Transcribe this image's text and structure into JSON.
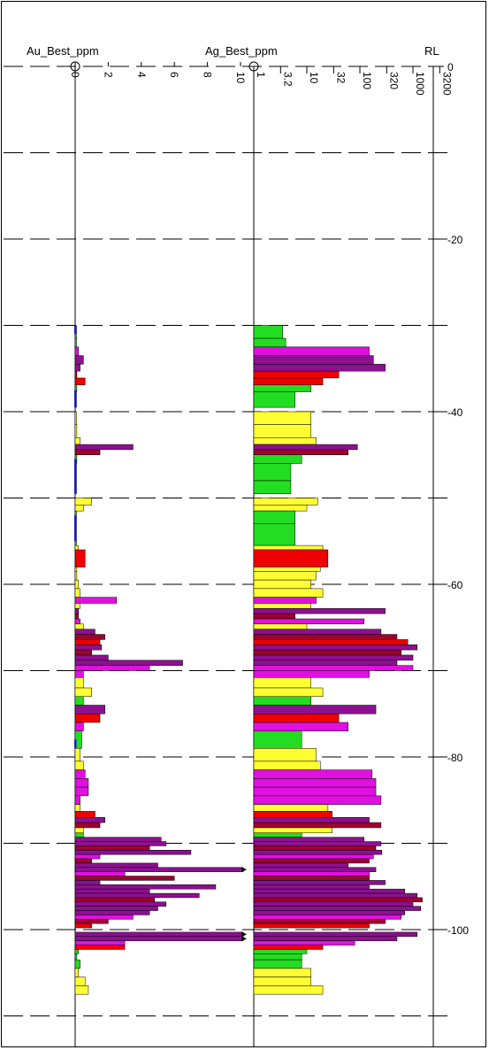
{
  "chart_data": {
    "type": "bar",
    "title": "",
    "depth_axis": {
      "label": "RL",
      "ticks": [
        0,
        -20,
        -40,
        -60,
        -80,
        -100
      ],
      "range": [
        0,
        -113
      ],
      "gridlines_every": 10
    },
    "panels": [
      {
        "name": "Au_Best_ppm",
        "scale": "linear",
        "xlim": [
          0,
          11
        ],
        "ticks": [
          "0",
          "2",
          "4",
          "6",
          "8",
          "10"
        ],
        "tick_values": [
          0,
          2,
          4,
          6,
          8,
          10
        ]
      },
      {
        "name": "Ag_Best_ppm",
        "scale": "log",
        "xlim": [
          1,
          5000
        ],
        "ticks": [
          "1",
          "3.2",
          "10",
          "32",
          "100",
          "320",
          "1000",
          "3200"
        ],
        "tick_values": [
          1,
          3.2,
          10,
          32,
          100,
          320,
          1000,
          3200
        ]
      }
    ],
    "colors": {
      "green": "#22dd22",
      "yellow": "#ffff33",
      "red": "#ee0000",
      "dark_red": "#a00030",
      "purple": "#8c1090",
      "magenta": "#e010e0",
      "blue": "#1a1acc"
    },
    "intervals": [
      {
        "from": -30,
        "to": -31.5,
        "au": 0.05,
        "ag": 3.5,
        "color": "green"
      },
      {
        "from": -31.5,
        "to": -32.5,
        "au": 0.08,
        "ag": 4,
        "color": "green"
      },
      {
        "from": -32.5,
        "to": -33.5,
        "au": 0.2,
        "ag": 150,
        "color": "magenta"
      },
      {
        "from": -33.5,
        "to": -34.5,
        "au": 0.5,
        "ag": 180,
        "color": "purple"
      },
      {
        "from": -34.5,
        "to": -35.3,
        "au": 0.3,
        "ag": 300,
        "color": "purple"
      },
      {
        "from": -35.3,
        "to": -36.1,
        "au": 0.1,
        "ag": 40,
        "color": "red"
      },
      {
        "from": -36.1,
        "to": -36.9,
        "au": 0.6,
        "ag": 20,
        "color": "red"
      },
      {
        "from": -36.9,
        "to": -37.7,
        "au": 0.1,
        "ag": 12,
        "color": "green"
      },
      {
        "from": -37.7,
        "to": -39.5,
        "au": 0.05,
        "ag": 6,
        "color": "green"
      },
      {
        "from": -40,
        "to": -41.5,
        "au": 0.05,
        "ag": 12,
        "color": "yellow"
      },
      {
        "from": -41.5,
        "to": -43,
        "au": 0.1,
        "ag": 12,
        "color": "yellow"
      },
      {
        "from": -43,
        "to": -43.8,
        "au": 0.3,
        "ag": 15,
        "color": "yellow"
      },
      {
        "from": -43.8,
        "to": -44.4,
        "au": 3.5,
        "ag": 90,
        "color": "purple"
      },
      {
        "from": -44.4,
        "to": -45,
        "au": 1.5,
        "ag": 60,
        "color": "dark_red"
      },
      {
        "from": -45,
        "to": -46,
        "au": 0.1,
        "ag": 8,
        "color": "green"
      },
      {
        "from": -46,
        "to": -48,
        "au": 0.05,
        "ag": 5,
        "color": "green"
      },
      {
        "from": -48,
        "to": -49.5,
        "au": 0.05,
        "ag": 5,
        "color": "green"
      },
      {
        "from": -50,
        "to": -50.8,
        "au": 1,
        "ag": 16,
        "color": "yellow"
      },
      {
        "from": -50.8,
        "to": -51.5,
        "au": 0.5,
        "ag": 10,
        "color": "yellow"
      },
      {
        "from": -51.5,
        "to": -53,
        "au": 0.05,
        "ag": 6,
        "color": "green"
      },
      {
        "from": -53,
        "to": -55.5,
        "au": 0.05,
        "ag": 6,
        "color": "green"
      },
      {
        "from": -55.5,
        "to": -56,
        "au": 0.2,
        "ag": 20,
        "color": "yellow"
      },
      {
        "from": -56,
        "to": -58,
        "au": 0.6,
        "ag": 25,
        "color": "red"
      },
      {
        "from": -58,
        "to": -58.5,
        "au": 0.1,
        "ag": 18,
        "color": "yellow"
      },
      {
        "from": -58.5,
        "to": -59.5,
        "au": 0.1,
        "ag": 15,
        "color": "yellow"
      },
      {
        "from": -59.5,
        "to": -60.5,
        "au": 0.2,
        "ag": 12,
        "color": "yellow"
      },
      {
        "from": -60.5,
        "to": -61.5,
        "au": 0.3,
        "ag": 20,
        "color": "yellow"
      },
      {
        "from": -61.5,
        "to": -62.2,
        "au": 2.5,
        "ag": 15,
        "color": "magenta"
      },
      {
        "from": -62.2,
        "to": -62.8,
        "au": 0.3,
        "ag": 12,
        "color": "yellow"
      },
      {
        "from": -62.8,
        "to": -63.4,
        "au": 0.2,
        "ag": 300,
        "color": "purple"
      },
      {
        "from": -63.4,
        "to": -64,
        "au": 0.2,
        "ag": 6,
        "color": "dark_red"
      },
      {
        "from": -64,
        "to": -64.6,
        "au": 0.3,
        "ag": 120,
        "color": "magenta"
      },
      {
        "from": -64.6,
        "to": -65.2,
        "au": 0.5,
        "ag": 10,
        "color": "yellow"
      },
      {
        "from": -65.2,
        "to": -65.8,
        "au": 1.2,
        "ag": 250,
        "color": "purple"
      },
      {
        "from": -65.8,
        "to": -66.4,
        "au": 1.8,
        "ag": 500,
        "color": "dark_red"
      },
      {
        "from": -66.4,
        "to": -67,
        "au": 1.5,
        "ag": 800,
        "color": "red"
      },
      {
        "from": -67,
        "to": -67.6,
        "au": 1.6,
        "ag": 1200,
        "color": "purple"
      },
      {
        "from": -67.6,
        "to": -68.2,
        "au": 1.0,
        "ag": 600,
        "color": "dark_red"
      },
      {
        "from": -68.2,
        "to": -68.8,
        "au": 2.0,
        "ag": 1000,
        "color": "purple"
      },
      {
        "from": -68.8,
        "to": -69.4,
        "au": 6.5,
        "ag": 500,
        "color": "purple"
      },
      {
        "from": -69.4,
        "to": -70,
        "au": 4.5,
        "ag": 1000,
        "color": "magenta"
      },
      {
        "from": -70,
        "to": -70.8,
        "au": 0.5,
        "ag": 150,
        "color": "magenta"
      },
      {
        "from": -70.8,
        "to": -72,
        "au": 0.5,
        "ag": 12,
        "color": "yellow"
      },
      {
        "from": -72,
        "to": -73,
        "au": 1.0,
        "ag": 20,
        "color": "yellow"
      },
      {
        "from": -73,
        "to": -74,
        "au": 0.5,
        "ag": 12,
        "color": "green"
      },
      {
        "from": -74,
        "to": -75,
        "au": 1.8,
        "ag": 200,
        "color": "purple"
      },
      {
        "from": -75,
        "to": -76,
        "au": 1.5,
        "ag": 40,
        "color": "red"
      },
      {
        "from": -76,
        "to": -77,
        "au": 0.5,
        "ag": 60,
        "color": "magenta"
      },
      {
        "from": -77,
        "to": -79,
        "au": 0.4,
        "ag": 8,
        "color": "green"
      },
      {
        "from": -79,
        "to": -80.5,
        "au": 0.3,
        "ag": 15,
        "color": "yellow"
      },
      {
        "from": -80.5,
        "to": -81.5,
        "au": 0.5,
        "ag": 18,
        "color": "yellow"
      },
      {
        "from": -81.5,
        "to": -82.5,
        "au": 0.6,
        "ag": 170,
        "color": "magenta"
      },
      {
        "from": -82.5,
        "to": -83.5,
        "au": 0.8,
        "ag": 200,
        "color": "magenta"
      },
      {
        "from": -83.5,
        "to": -84.5,
        "au": 0.8,
        "ag": 200,
        "color": "magenta"
      },
      {
        "from": -84.5,
        "to": -85.5,
        "au": 0.3,
        "ag": 250,
        "color": "magenta"
      },
      {
        "from": -85.5,
        "to": -86.3,
        "au": 0.3,
        "ag": 25,
        "color": "yellow"
      },
      {
        "from": -86.3,
        "to": -87,
        "au": 1.2,
        "ag": 30,
        "color": "red"
      },
      {
        "from": -87,
        "to": -87.6,
        "au": 1.8,
        "ag": 150,
        "color": "purple"
      },
      {
        "from": -87.6,
        "to": -88.2,
        "au": 1.5,
        "ag": 250,
        "color": "dark_red"
      },
      {
        "from": -88.2,
        "to": -88.8,
        "au": 0.5,
        "ag": 30,
        "color": "yellow"
      },
      {
        "from": -88.8,
        "to": -89.3,
        "au": 0.5,
        "ag": 8,
        "color": "green"
      },
      {
        "from": -89.3,
        "to": -89.8,
        "au": 5.2,
        "ag": 120,
        "color": "purple"
      },
      {
        "from": -89.8,
        "to": -90.3,
        "au": 5.5,
        "ag": 250,
        "color": "purple"
      },
      {
        "from": -90.3,
        "to": -90.8,
        "au": 4.5,
        "ag": 200,
        "color": "dark_red"
      },
      {
        "from": -90.8,
        "to": -91.3,
        "au": 7.0,
        "ag": 260,
        "color": "purple"
      },
      {
        "from": -91.3,
        "to": -91.8,
        "au": 1.5,
        "ag": 180,
        "color": "magenta"
      },
      {
        "from": -91.8,
        "to": -92.3,
        "au": 1.0,
        "ag": 150,
        "color": "dark_red"
      },
      {
        "from": -92.3,
        "to": -92.8,
        "au": 5.0,
        "ag": 60,
        "color": "purple"
      },
      {
        "from": -92.8,
        "to": -93.3,
        "au": 11.0,
        "ag": 200,
        "color": "purple"
      },
      {
        "from": -93.3,
        "to": -93.8,
        "au": 3.0,
        "ag": 150,
        "color": "magenta"
      },
      {
        "from": -93.8,
        "to": -94.3,
        "au": 6.0,
        "ag": 150,
        "color": "dark_red"
      },
      {
        "from": -94.3,
        "to": -94.8,
        "au": 1.5,
        "ag": 300,
        "color": "purple"
      },
      {
        "from": -94.8,
        "to": -95.3,
        "au": 8.5,
        "ag": 150,
        "color": "purple"
      },
      {
        "from": -95.3,
        "to": -95.8,
        "au": 4.5,
        "ag": 700,
        "color": "purple"
      },
      {
        "from": -95.8,
        "to": -96.3,
        "au": 7.5,
        "ag": 1200,
        "color": "purple"
      },
      {
        "from": -96.3,
        "to": -96.8,
        "au": 4.8,
        "ag": 1500,
        "color": "dark_red"
      },
      {
        "from": -96.8,
        "to": -97.3,
        "au": 5.5,
        "ag": 1000,
        "color": "purple"
      },
      {
        "from": -97.3,
        "to": -97.8,
        "au": 5.0,
        "ag": 1400,
        "color": "purple"
      },
      {
        "from": -97.8,
        "to": -98.3,
        "au": 4.5,
        "ag": 700,
        "color": "purple"
      },
      {
        "from": -98.3,
        "to": -98.8,
        "au": 3.5,
        "ag": 600,
        "color": "magenta"
      },
      {
        "from": -98.8,
        "to": -99.3,
        "au": 2.0,
        "ag": 300,
        "color": "dark_red"
      },
      {
        "from": -99.3,
        "to": -99.8,
        "au": 1.0,
        "ag": 150,
        "color": "red"
      },
      {
        "from": -100.3,
        "to": -100.8,
        "au": 11.0,
        "ag": 1200,
        "color": "purple"
      },
      {
        "from": -100.8,
        "to": -101.3,
        "au": 10.5,
        "ag": 500,
        "color": "purple"
      },
      {
        "from": -101.3,
        "to": -101.8,
        "au": 3.0,
        "ag": 80,
        "color": "magenta"
      },
      {
        "from": -101.8,
        "to": -102.3,
        "au": 3.0,
        "ag": 20,
        "color": "red"
      },
      {
        "from": -102.3,
        "to": -102.8,
        "au": 0.2,
        "ag": 10,
        "color": "green"
      },
      {
        "from": -102.8,
        "to": -103.5,
        "au": 0.1,
        "ag": 8,
        "color": "green"
      },
      {
        "from": -103.5,
        "to": -104.5,
        "au": 0.3,
        "ag": 8,
        "color": "green"
      },
      {
        "from": -104.5,
        "to": -105.5,
        "au": 0.2,
        "ag": 12,
        "color": "yellow"
      },
      {
        "from": -105.5,
        "to": -106.5,
        "au": 0.6,
        "ag": 12,
        "color": "yellow"
      },
      {
        "from": -106.5,
        "to": -107.5,
        "au": 0.8,
        "ag": 20,
        "color": "yellow"
      }
    ]
  }
}
